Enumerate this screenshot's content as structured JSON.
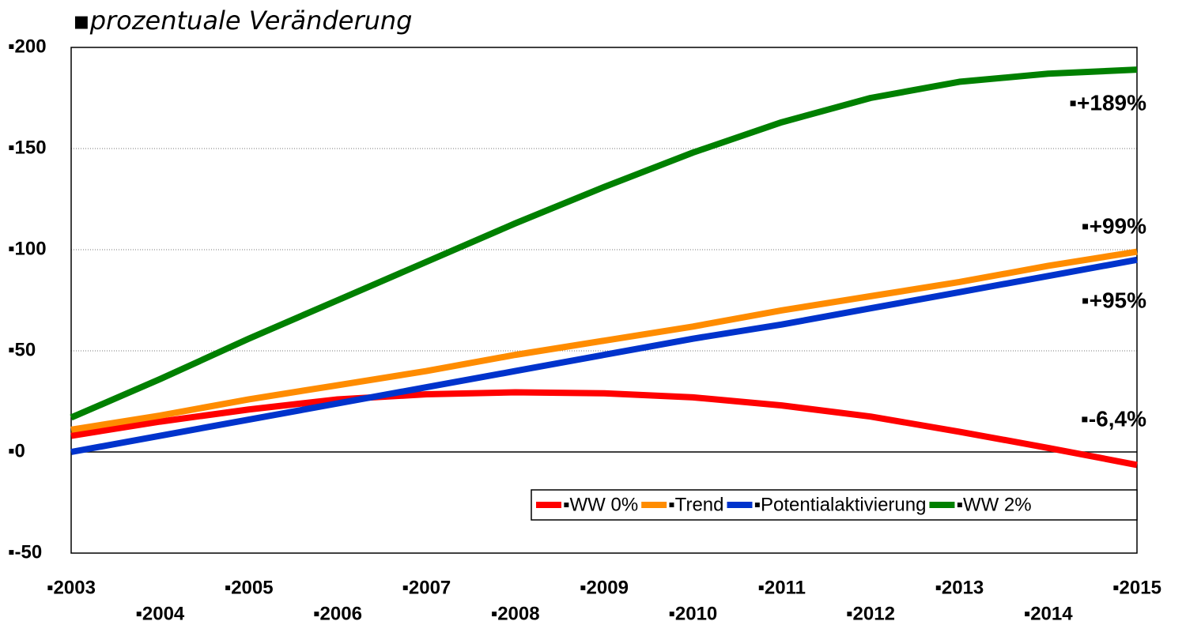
{
  "chart_data": {
    "type": "line",
    "title": "▪prozentuale Veränderung",
    "categories": [
      "▪2003",
      "▪2004",
      "▪2005",
      "▪2006",
      "▪2007",
      "▪2008",
      "▪2009",
      "▪2010",
      "▪2011",
      "▪2012",
      "▪2013",
      "▪2014",
      "▪2015"
    ],
    "series": [
      {
        "name": "▪WW 0%",
        "color": "#ff0000",
        "values": [
          8,
          15,
          21,
          26,
          28.5,
          29.5,
          29,
          27,
          23,
          17.5,
          10,
          2,
          -6.4
        ]
      },
      {
        "name": "▪Trend",
        "color": "#ff8c00",
        "values": [
          11,
          18,
          26,
          33,
          40,
          48,
          55,
          62,
          70,
          77,
          84,
          92,
          99
        ]
      },
      {
        "name": "▪Potentialaktivierung",
        "color": "#0033cc",
        "values": [
          0,
          8,
          16,
          24,
          32,
          40,
          48,
          56,
          63,
          71,
          79,
          87,
          95
        ]
      },
      {
        "name": "▪WW 2%",
        "color": "#008000",
        "values": [
          17,
          36,
          56,
          75,
          94,
          113,
          131,
          148,
          163,
          175,
          183,
          187,
          189
        ]
      }
    ],
    "ylim": [
      -50,
      200
    ],
    "yticks": [
      {
        "value": -50,
        "label": "▪-50"
      },
      {
        "value": 0,
        "label": "▪0"
      },
      {
        "value": 50,
        "label": "▪50"
      },
      {
        "value": 100,
        "label": "▪100"
      },
      {
        "value": 150,
        "label": "▪150"
      },
      {
        "value": 200,
        "label": "▪200"
      }
    ],
    "grid": true,
    "legend": "bottom-right",
    "annotations": [
      "▪+189%",
      "▪+99%",
      "▪+95%",
      "▪-6,4%"
    ]
  }
}
